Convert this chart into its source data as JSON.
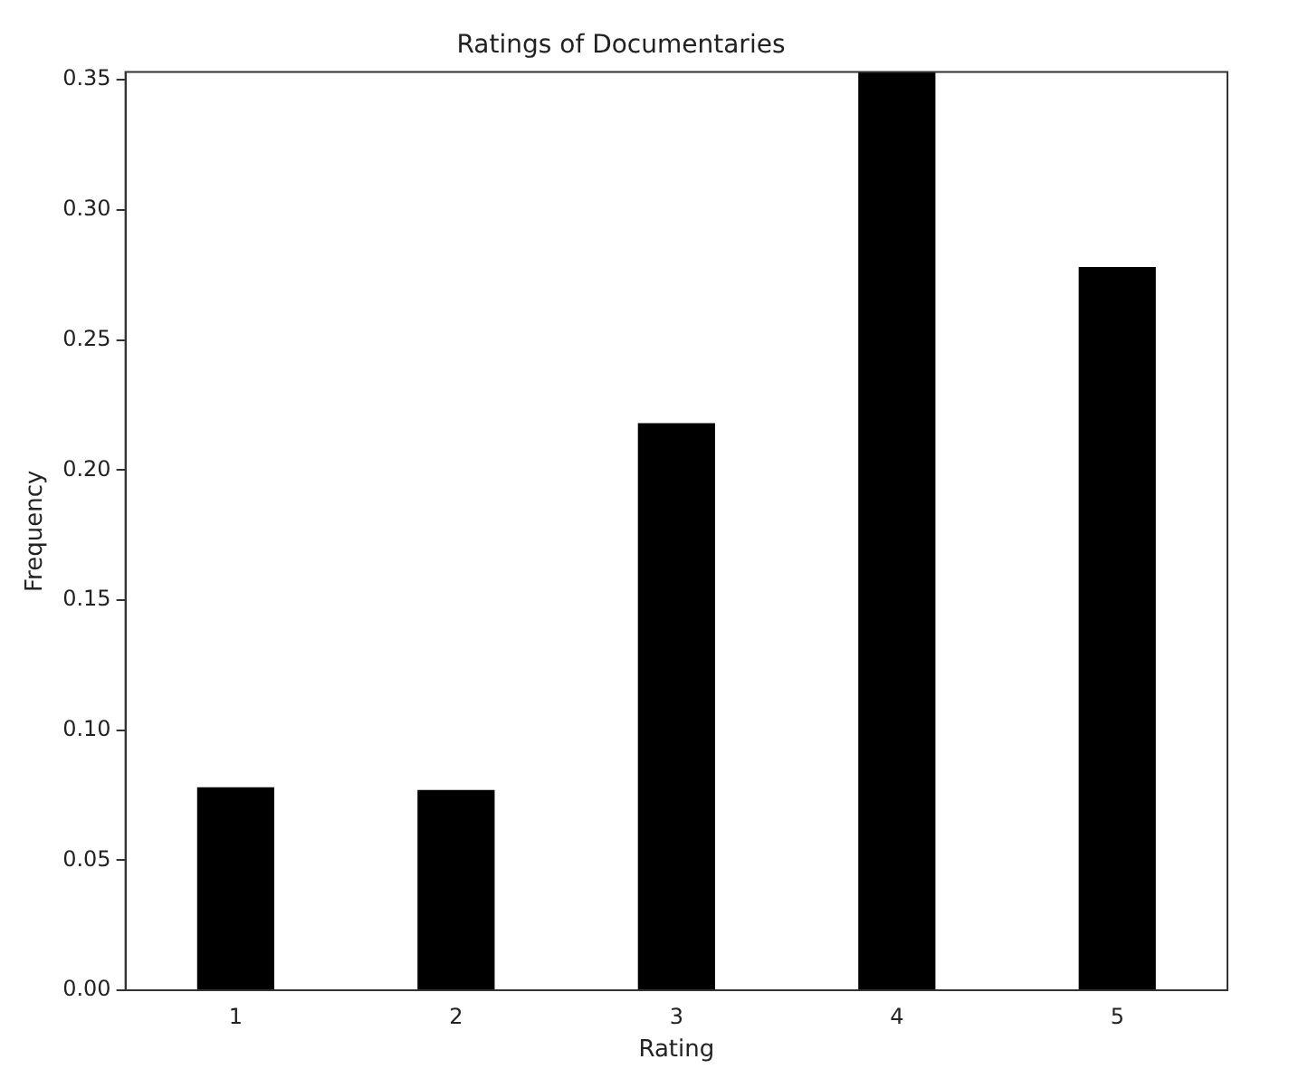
{
  "chart_data": {
    "type": "bar",
    "title": "Ratings of Documentaries",
    "xlabel": "Rating",
    "ylabel": "Frequency",
    "categories": [
      "1",
      "2",
      "3",
      "4",
      "5"
    ],
    "values": [
      0.078,
      0.077,
      0.218,
      0.353,
      0.278
    ],
    "color": "#000000",
    "ylim": [
      0,
      0.353
    ],
    "yticks": [
      {
        "value": 0,
        "label": "0.00"
      },
      {
        "value": 0.05,
        "label": "0.05"
      },
      {
        "value": 0.1,
        "label": "0.10"
      },
      {
        "value": 0.15,
        "label": "0.15"
      },
      {
        "value": 0.2,
        "label": "0.20"
      },
      {
        "value": 0.25,
        "label": "0.25"
      },
      {
        "value": 0.3,
        "label": "0.30"
      },
      {
        "value": 0.35,
        "label": "0.35"
      }
    ],
    "grid": false,
    "legend": false
  }
}
